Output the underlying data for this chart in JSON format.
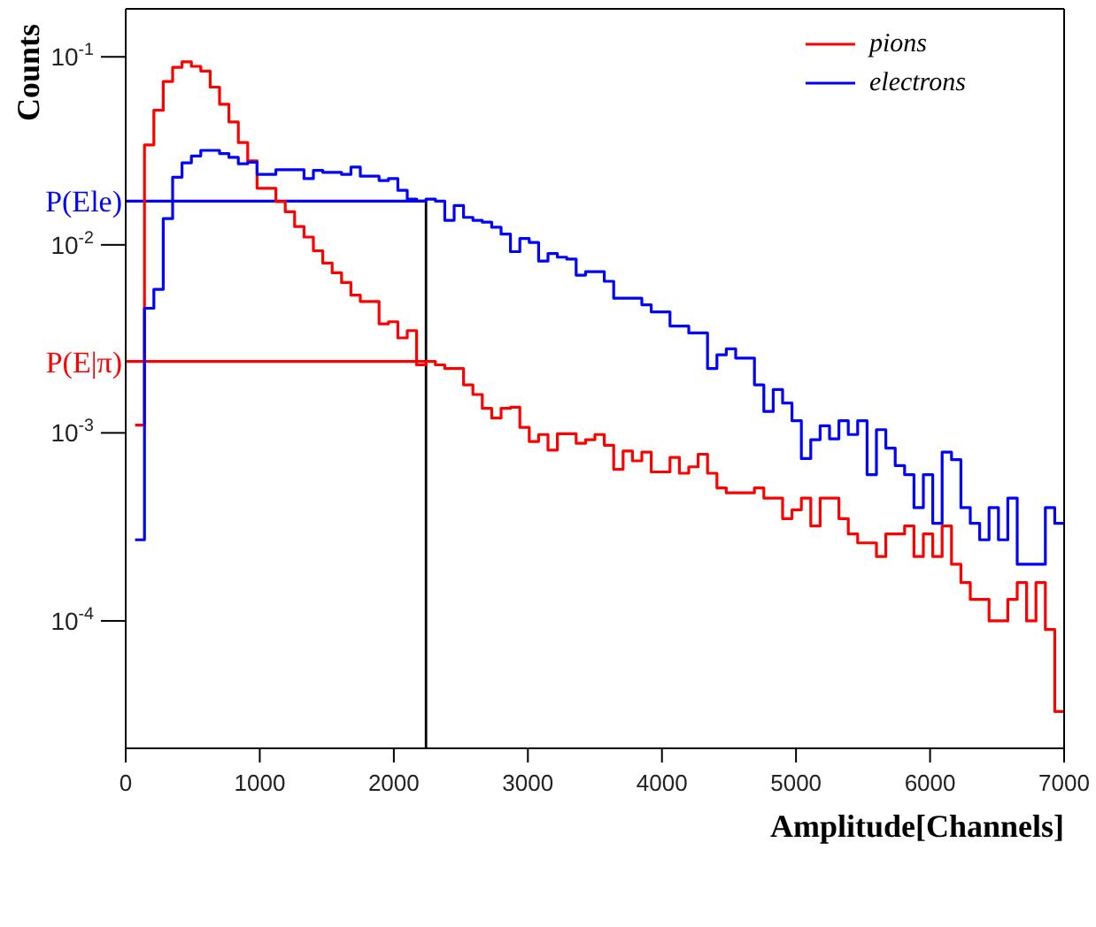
{
  "chart_data": {
    "type": "histogram",
    "xlabel": "Amplitude[Channels]",
    "ylabel": "Counts",
    "bins": [
      70,
      140,
      210,
      280,
      350,
      420,
      490,
      560,
      630,
      700,
      770,
      840,
      910,
      980,
      1050,
      1120,
      1190,
      1260,
      1330,
      1400,
      1470,
      1540,
      1610,
      1680,
      1750,
      1820,
      1890,
      1960,
      2030,
      2100,
      2170,
      2240,
      2310,
      2380,
      2450,
      2520,
      2590,
      2660,
      2730,
      2800,
      2870,
      2940,
      3010,
      3080,
      3150,
      3220,
      3290,
      3360,
      3430,
      3500,
      3570,
      3640,
      3710,
      3780,
      3850,
      3920,
      3990,
      4060,
      4130,
      4200,
      4270,
      4340,
      4410,
      4480,
      4550,
      4620,
      4690,
      4760,
      4830,
      4900,
      4970,
      5040,
      5110,
      5180,
      5250,
      5320,
      5390,
      5460,
      5530,
      5600,
      5670,
      5740,
      5810,
      5880,
      5950,
      6020,
      6090,
      6160,
      6230,
      6300,
      6370,
      6440,
      6510,
      6580,
      6650,
      6720,
      6790,
      6860,
      6930,
      7000
    ],
    "series": [
      {
        "name": "pions",
        "color": "#ff0000",
        "values": [
          0.0011,
          0.034,
          0.052,
          0.074,
          0.088,
          0.094,
          0.089,
          0.084,
          0.069,
          0.056,
          0.045,
          0.035,
          0.028,
          0.02,
          0.02,
          0.017,
          0.015,
          0.0125,
          0.011,
          0.0093,
          0.008,
          0.0071,
          0.0063,
          0.0054,
          0.005,
          0.005,
          0.0038,
          0.0039,
          0.0032,
          0.0035,
          0.0023,
          0.0024,
          0.0023,
          0.0022,
          0.0022,
          0.0018,
          0.0016,
          0.00135,
          0.0012,
          0.00135,
          0.00137,
          0.00107,
          0.0009,
          0.00098,
          0.00081,
          0.00099,
          0.00099,
          0.00088,
          0.00092,
          0.00098,
          0.00086,
          0.00064,
          0.0008,
          0.00071,
          0.00079,
          0.00062,
          0.00062,
          0.00074,
          0.00061,
          0.00066,
          0.00077,
          0.00061,
          0.00051,
          0.00048,
          0.00048,
          0.00048,
          0.00051,
          0.00045,
          0.00045,
          0.00035,
          0.00039,
          0.00045,
          0.00032,
          0.00045,
          0.00045,
          0.00035,
          0.00029,
          0.00026,
          0.00026,
          0.00022,
          0.00029,
          0.00029,
          0.00032,
          0.00022,
          0.00029,
          0.00022,
          0.00032,
          0.0002,
          0.00016,
          0.00013,
          0.00013,
          0.0001,
          0.0001,
          0.00013,
          0.00016,
          0.0001,
          0.00016,
          9e-05,
          3.3e-05
        ]
      },
      {
        "name": "electrons",
        "color": "#0000ff",
        "values": [
          0.00027,
          0.0046,
          0.0058,
          0.0138,
          0.0229,
          0.0273,
          0.0297,
          0.0318,
          0.0318,
          0.0306,
          0.0292,
          0.027,
          0.0275,
          0.0237,
          0.0237,
          0.0251,
          0.0251,
          0.0251,
          0.0225,
          0.0249,
          0.0243,
          0.0243,
          0.0237,
          0.0259,
          0.0232,
          0.0232,
          0.022,
          0.0225,
          0.0195,
          0.0175,
          0.0171,
          0.0175,
          0.0171,
          0.0135,
          0.0162,
          0.014,
          0.0135,
          0.0132,
          0.0124,
          0.0114,
          0.0092,
          0.0108,
          0.0103,
          0.0082,
          0.009,
          0.0086,
          0.0084,
          0.0069,
          0.0072,
          0.0072,
          0.0064,
          0.0052,
          0.0052,
          0.0052,
          0.0048,
          0.0044,
          0.0044,
          0.0037,
          0.0037,
          0.0034,
          0.0034,
          0.0022,
          0.0026,
          0.0028,
          0.0025,
          0.0025,
          0.0018,
          0.0013,
          0.0017,
          0.00144,
          0.00116,
          0.00073,
          0.00092,
          0.00109,
          0.00093,
          0.00116,
          0.00098,
          0.00116,
          0.0006,
          0.00104,
          0.00083,
          0.00067,
          0.0006,
          0.0004,
          0.0006,
          0.00033,
          0.00079,
          0.00072,
          0.0004,
          0.00033,
          0.00027,
          0.0004,
          0.00027,
          0.00045,
          0.0002,
          0.0002,
          0.0002,
          0.0004,
          0.00033
        ]
      }
    ],
    "xlim": [
      0,
      7000
    ],
    "xticks": [
      0,
      1000,
      2000,
      3000,
      4000,
      5000,
      6000,
      7000
    ],
    "ylim": [
      2.1e-05,
      0.18
    ],
    "log": true,
    "yticks": [
      {
        "value": 0.0001,
        "label": "10$^{-4}$"
      },
      {
        "value": 0.001,
        "label": "10$^{-3}$"
      },
      {
        "value": 0.01,
        "label": "10$^{-2}$"
      },
      {
        "value": 0.1,
        "label": "10$^{-1}$"
      }
    ],
    "ref_lines": [
      {
        "axis": "x",
        "value": 2240,
        "color": "#000000"
      },
      {
        "axis": "y",
        "value": 0.0171,
        "label": "P(Ele)",
        "color": "#0000ff"
      },
      {
        "axis": "y",
        "value": 0.0024,
        "label": "P(E|π)",
        "color": "#ff0000"
      }
    ],
    "legend": "top right",
    "grid": false
  }
}
